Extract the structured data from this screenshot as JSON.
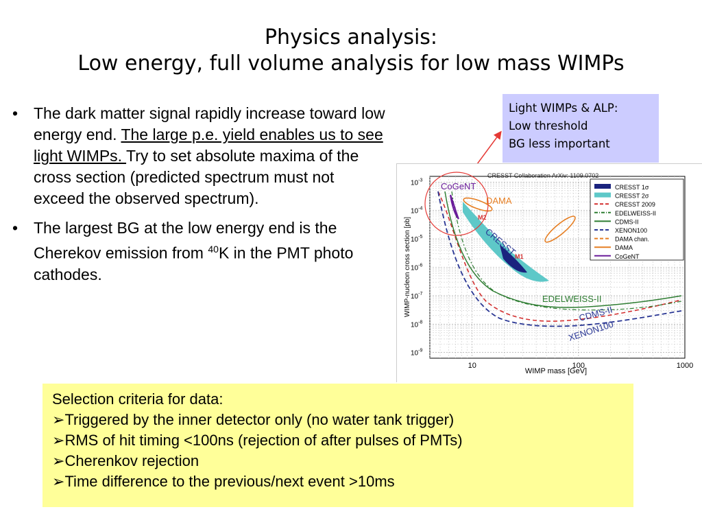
{
  "slide": {
    "title_line1": "Physics analysis:",
    "title_line2": "Low energy, full volume analysis for low mass WIMPs"
  },
  "bullets": [
    {
      "text_before": "The dark matter signal rapidly increase toward low energy end. ",
      "underlined": "The large p.e. yield enables us to see light WIMPs.   ",
      "text_after": "Try to set absolute maxima of the cross section (predicted spectrum must not exceed the observed spectrum)."
    },
    {
      "text_before": "The largest BG at the low energy end is the Cherekov emission from ",
      "superscript": "40",
      "text_after": "K in the PMT photo cathodes."
    }
  ],
  "callout": {
    "line1": "Light WIMPs & ALP:",
    "line2": "Low threshold",
    "line3": "BG less important"
  },
  "figure": {
    "header": "CRESST Collaboration ArXiv: 1109.0702",
    "xlabel": "WIMP mass [GeV]",
    "ylabel": "WIMP-nucleon cross section [pb]",
    "x_ticks": [
      "10",
      "100",
      "1000"
    ],
    "y_ticks": [
      "10-3",
      "10-4",
      "10-5",
      "10-6",
      "10-7",
      "10-8",
      "10-9"
    ],
    "legend": [
      {
        "label": "CRESST 1σ",
        "color": "#1a237e",
        "style": "fill"
      },
      {
        "label": "CRESST 2σ",
        "color": "#5ec8c8",
        "style": "fill"
      },
      {
        "label": "CRESST 2009",
        "color": "#d32f2f",
        "style": "dash"
      },
      {
        "label": "EDELWEISS-II",
        "color": "#2e7d32",
        "style": "dashdot"
      },
      {
        "label": "CDMS-II",
        "color": "#2e7d32",
        "style": "solid"
      },
      {
        "label": "XENON100",
        "color": "#283593",
        "style": "dash"
      },
      {
        "label": "DAMA chan.",
        "color": "#e67e22",
        "style": "dash"
      },
      {
        "label": "DAMA",
        "color": "#e67e22",
        "style": "solid"
      },
      {
        "label": "CoGeNT",
        "color": "#6a1b9a",
        "style": "solid"
      }
    ],
    "annotations": {
      "cogent": "CoGeNT",
      "dama": "DAMA",
      "cresst": "CRESST",
      "m1": "M1",
      "m2": "M2",
      "edelweiss": "EDELWEISS-II",
      "cdms": "CDMS-II",
      "xenon": "XENON100"
    },
    "colors": {
      "cresst_1sigma": "#1a237e",
      "cresst_2sigma": "#5ec8c8",
      "dama": "#e67e22",
      "cogent": "#6a1b9a",
      "cdms": "#2e7d32",
      "xenon": "#283593",
      "highlight": "#e53935"
    }
  },
  "selection": {
    "heading": "Selection criteria for data:",
    "items": [
      "Triggered by the inner detector only (no water tank trigger)",
      "RMS of hit timing  <100ns (rejection of after pulses of PMTs)",
      "Cherenkov rejection",
      "Time difference to the previous/next event >10ms"
    ],
    "marker": "➢"
  }
}
